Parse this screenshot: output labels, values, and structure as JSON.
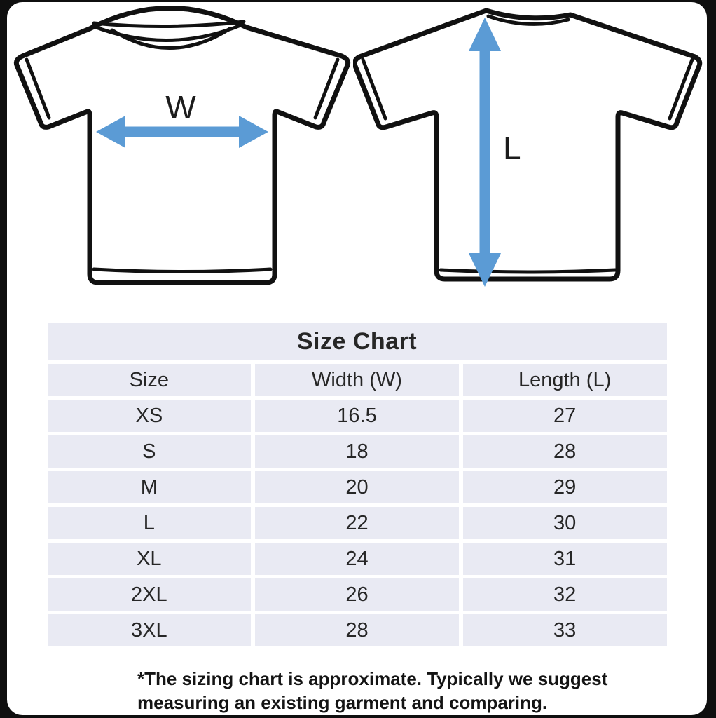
{
  "diagram": {
    "width_label": "W",
    "length_label": "L",
    "arrow_color": "#5b9bd5",
    "front_shirt_name": "t-shirt front view with chest width measurement arrow",
    "back_shirt_name": "t-shirt back view with body length measurement arrow"
  },
  "style": {
    "cell_bg": "#e9eaf3",
    "canvas_bg": "#ffffff",
    "frame_bg": "#0f0f0f"
  },
  "chart_data": {
    "type": "table",
    "title": "Size Chart",
    "columns": [
      "Size",
      "Width (W)",
      "Length (L)"
    ],
    "rows": [
      [
        "XS",
        "16.5",
        "27"
      ],
      [
        "S",
        "18",
        "28"
      ],
      [
        "M",
        "20",
        "29"
      ],
      [
        "L",
        "22",
        "30"
      ],
      [
        "XL",
        "24",
        "31"
      ],
      [
        "2XL",
        "26",
        "32"
      ],
      [
        "3XL",
        "28",
        "33"
      ]
    ],
    "numeric": {
      "sizes": [
        "XS",
        "S",
        "M",
        "L",
        "XL",
        "2XL",
        "3XL"
      ],
      "width_w": [
        16.5,
        18,
        20,
        22,
        24,
        26,
        28
      ],
      "length_l": [
        27,
        28,
        29,
        30,
        31,
        32,
        33
      ]
    }
  },
  "footnote": {
    "line1": "*The sizing chart is approximate. Typically we suggest",
    "line2": "measuring an existing garment and comparing."
  }
}
